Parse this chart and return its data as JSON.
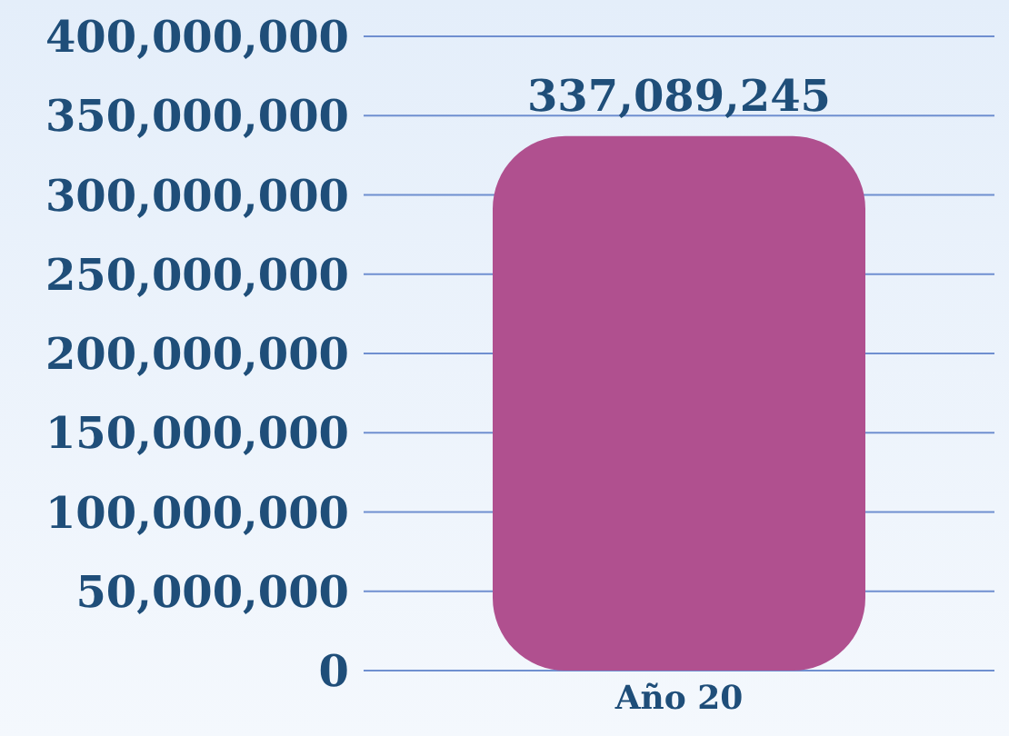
{
  "chart_data": {
    "type": "bar",
    "categories": [
      "Año 20"
    ],
    "values": [
      337089245
    ],
    "color": "#b0508f",
    "ylim": [
      0,
      400000000
    ],
    "yticks": [
      {
        "value": 0,
        "label": "0"
      },
      {
        "value": 50000000,
        "label": "50,000,000"
      },
      {
        "value": 100000000,
        "label": "100,000,000"
      },
      {
        "value": 150000000,
        "label": "150,000,000"
      },
      {
        "value": 200000000,
        "label": "200,000,000"
      },
      {
        "value": 250000000,
        "label": "250,000,000"
      },
      {
        "value": 300000000,
        "label": "300,000,000"
      },
      {
        "value": 350000000,
        "label": "350,000,000"
      },
      {
        "value": 400000000,
        "label": "400,000,000"
      }
    ],
    "grid": "y",
    "value_labels": [
      "337,089,245"
    ],
    "legend": false
  }
}
